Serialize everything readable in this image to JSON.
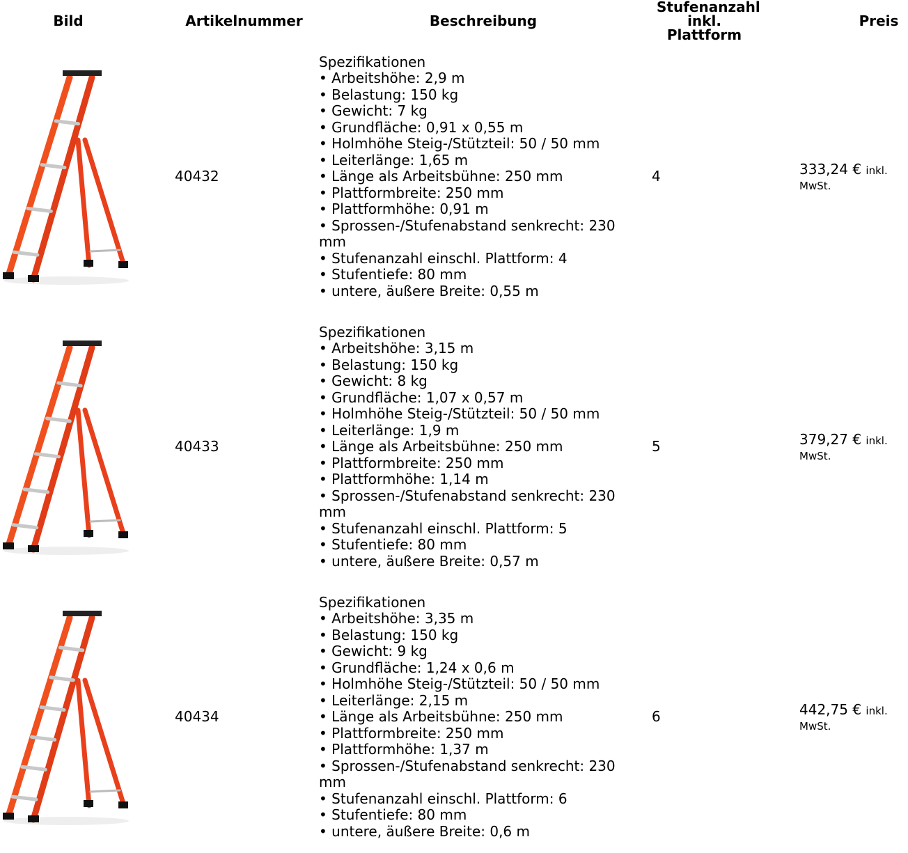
{
  "table": {
    "header": [
      "Bild",
      "Artikelnummer",
      "Beschreibung",
      "Stufenanzahl inkl. Plattform",
      "Preis"
    ],
    "rows": [
      {
        "article": "40432",
        "description": {
          "heading": "Spezifikationen",
          "specs": [
            "• Arbeitshöhe: 2,9 m",
            "• Belastung: 150 kg",
            "• Gewicht: 7 kg",
            "• Grundfläche: 0,91 x 0,55 m",
            "• Holmhöhe Steig-/Stützteil: 50 / 50 mm",
            "• Leiterlänge: 1,65 m",
            "• Länge als Arbeitsbühne: 250 mm",
            "• Plattformbreite: 250 mm",
            "• Plattformhöhe: 0,91 m",
            "• Sprossen-/Stufenabstand senkrecht: 230 mm",
            "• Stufenanzahl einschl. Plattform: 4",
            "• Stufentiefe: 80 mm",
            "• untere, äußere Breite: 0,55 m"
          ]
        },
        "steps": 4,
        "price": "333,24 €",
        "price_note": "inkl. MwSt."
      },
      {
        "article": "40433",
        "description": {
          "heading": "Spezifikationen",
          "specs": [
            "• Arbeitshöhe: 3,15 m",
            "• Belastung: 150 kg",
            "• Gewicht: 8 kg",
            "• Grundfläche: 1,07 x 0,57 m",
            "• Holmhöhe Steig-/Stützteil: 50 / 50 mm",
            "• Leiterlänge: 1,9 m",
            "• Länge als Arbeitsbühne: 250 mm",
            "• Plattformbreite: 250 mm",
            "• Plattformhöhe: 1,14 m",
            "• Sprossen-/Stufenabstand senkrecht: 230 mm",
            "• Stufenanzahl einschl. Plattform: 5",
            "• Stufentiefe: 80 mm",
            "• untere, äußere Breite: 0,57 m"
          ]
        },
        "steps": 5,
        "price": "379,27 €",
        "price_note": "inkl. MwSt."
      },
      {
        "article": "40434",
        "description": {
          "heading": "Spezifikationen",
          "specs": [
            "• Arbeitshöhe: 3,35 m",
            "• Belastung: 150 kg",
            "• Gewicht: 9 kg",
            "• Grundfläche: 1,24 x 0,6 m",
            "• Holmhöhe Steig-/Stützteil: 50 / 50 mm",
            "• Leiterlänge: 2,15 m",
            "• Länge als Arbeitsbühne: 250 mm",
            "• Plattformbreite: 250 mm",
            "• Plattformhöhe: 1,37 m",
            "• Sprossen-/Stufenabstand senkrecht: 230 mm",
            "• Stufenanzahl einschl. Plattform: 6",
            "• Stufentiefe: 80 mm",
            "• untere, äußere Breite: 0,6 m"
          ]
        },
        "steps": 6,
        "price": "442,75 €",
        "price_note": "inkl. MwSt."
      }
    ]
  }
}
